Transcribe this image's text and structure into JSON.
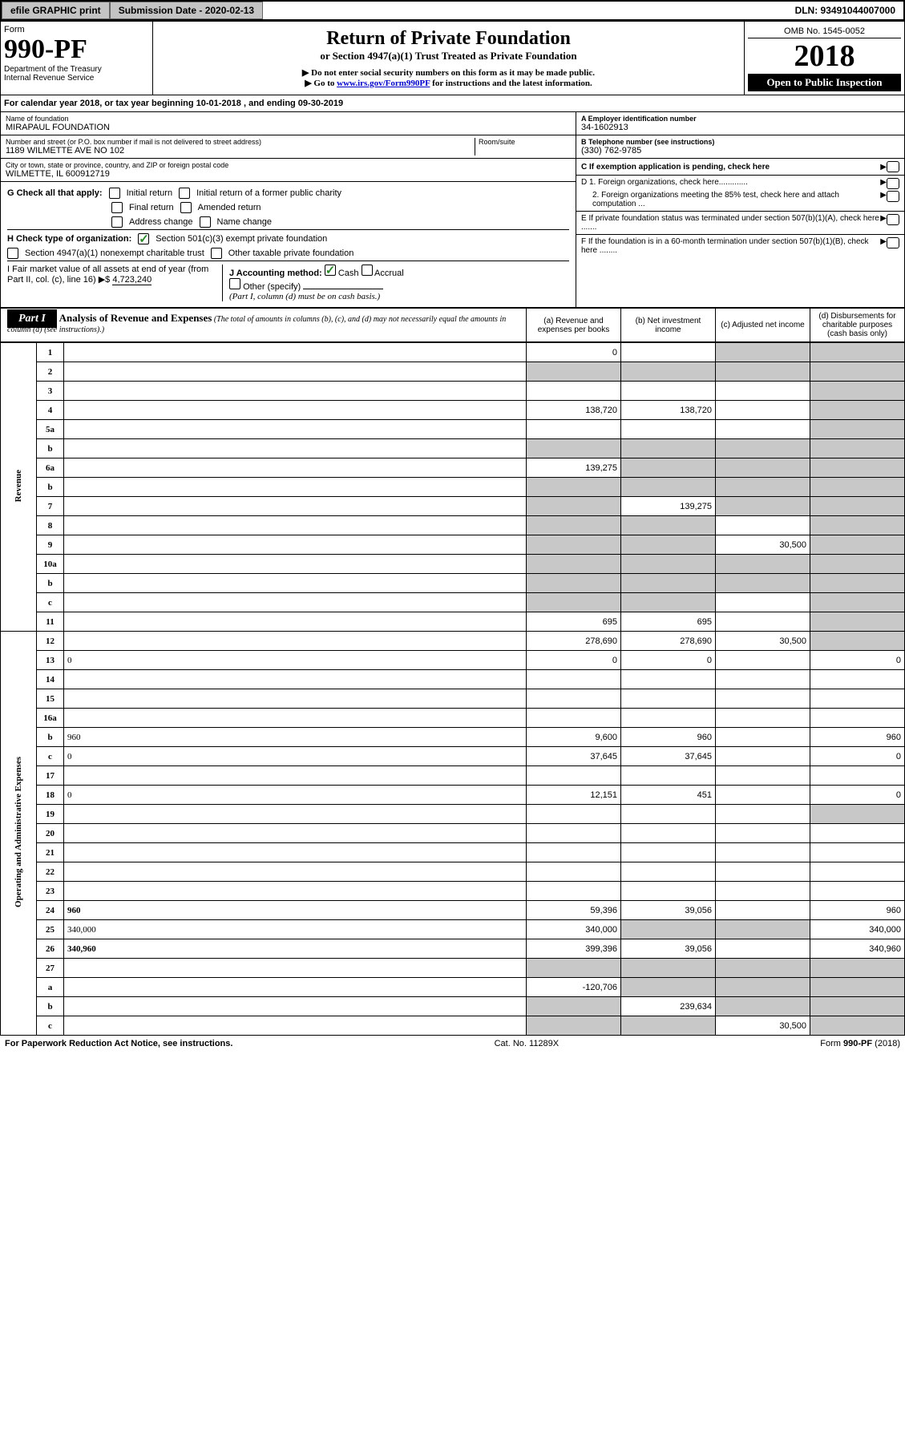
{
  "topbar": {
    "efile": "efile GRAPHIC print",
    "submission": "Submission Date - 2020-02-13",
    "dln": "DLN: 93491044007000"
  },
  "header": {
    "form_word": "Form",
    "form_no": "990-PF",
    "dept": "Department of the Treasury",
    "irs": "Internal Revenue Service",
    "title": "Return of Private Foundation",
    "subtitle": "or Section 4947(a)(1) Trust Treated as Private Foundation",
    "instr1": "▶ Do not enter social security numbers on this form as it may be made public.",
    "instr2_pre": "▶ Go to ",
    "instr2_link": "www.irs.gov/Form990PF",
    "instr2_post": " for instructions and the latest information.",
    "omb": "OMB No. 1545-0052",
    "year": "2018",
    "open": "Open to Public Inspection"
  },
  "calyear": "For calendar year 2018, or tax year beginning 10-01-2018               , and ending 09-30-2019",
  "entity": {
    "name_lbl": "Name of foundation",
    "name": "MIRAPAUL FOUNDATION",
    "addr_lbl": "Number and street (or P.O. box number if mail is not delivered to street address)",
    "addr": "1189 WILMETTE AVE NO 102",
    "room_lbl": "Room/suite",
    "city_lbl": "City or town, state or province, country, and ZIP or foreign postal code",
    "city": "WILMETTE, IL  600912719",
    "ein_lbl": "A Employer identification number",
    "ein": "34-1602913",
    "tel_lbl": "B Telephone number (see instructions)",
    "tel": "(330) 762-9785",
    "c_lbl": "C If exemption application is pending, check here",
    "d1": "D 1. Foreign organizations, check here.............",
    "d2": "2. Foreign organizations meeting the 85% test, check here and attach computation ...",
    "e_lbl": "E  If private foundation status was terminated under section 507(b)(1)(A), check here .......",
    "f_lbl": "F  If the foundation is in a 60-month termination under section 507(b)(1)(B), check here ........"
  },
  "checks": {
    "g_lbl": "G Check all that apply:",
    "g_items": [
      "Initial return",
      "Initial return of a former public charity",
      "Final return",
      "Amended return",
      "Address change",
      "Name change"
    ],
    "h_lbl": "H Check type of organization:",
    "h1": "Section 501(c)(3) exempt private foundation",
    "h2": "Section 4947(a)(1) nonexempt charitable trust",
    "h3": "Other taxable private foundation",
    "i_lbl": "I Fair market value of all assets at end of year (from Part II, col. (c), line 16) ▶$",
    "i_val": "4,723,240",
    "j_lbl": "J Accounting method:",
    "j_cash": "Cash",
    "j_accrual": "Accrual",
    "j_other": "Other (specify)",
    "j_note": "(Part I, column (d) must be on cash basis.)"
  },
  "part1": {
    "tab": "Part I",
    "title": "Analysis of Revenue and Expenses",
    "note": " (The total of amounts in columns (b), (c), and (d) may not necessarily equal the amounts in column (a) (see instructions).)",
    "cols": {
      "a": "(a)   Revenue and expenses per books",
      "b": "(b)  Net investment income",
      "c": "(c)  Adjusted net income",
      "d": "(d)  Disbursements for charitable purposes (cash basis only)"
    }
  },
  "vlabels": {
    "rev": "Revenue",
    "exp": "Operating and Administrative Expenses"
  },
  "rows": [
    {
      "n": "1",
      "d": "",
      "a": "0",
      "b": "",
      "c": "",
      "sh": [
        "c",
        "d"
      ]
    },
    {
      "n": "2",
      "d": "",
      "a": "",
      "b": "",
      "c": "",
      "sh": [
        "a",
        "b",
        "c",
        "d"
      ],
      "bold_not": true
    },
    {
      "n": "3",
      "d": "",
      "a": "",
      "b": "",
      "c": "",
      "sh": [
        "d"
      ]
    },
    {
      "n": "4",
      "d": "",
      "a": "138,720",
      "b": "138,720",
      "c": "",
      "sh": [
        "d"
      ]
    },
    {
      "n": "5a",
      "d": "",
      "a": "",
      "b": "",
      "c": "",
      "sh": [
        "d"
      ]
    },
    {
      "n": "b",
      "d": "",
      "a": "",
      "b": "",
      "c": "",
      "sh": [
        "a",
        "b",
        "c",
        "d"
      ]
    },
    {
      "n": "6a",
      "d": "",
      "a": "139,275",
      "b": "",
      "c": "",
      "sh": [
        "b",
        "c",
        "d"
      ]
    },
    {
      "n": "b",
      "d": "",
      "a": "",
      "b": "",
      "c": "",
      "sh": [
        "a",
        "b",
        "c",
        "d"
      ]
    },
    {
      "n": "7",
      "d": "",
      "a": "",
      "b": "139,275",
      "c": "",
      "sh": [
        "a",
        "c",
        "d"
      ]
    },
    {
      "n": "8",
      "d": "",
      "a": "",
      "b": "",
      "c": "",
      "sh": [
        "a",
        "b",
        "d"
      ]
    },
    {
      "n": "9",
      "d": "",
      "a": "",
      "b": "",
      "c": "30,500",
      "sh": [
        "a",
        "b",
        "d"
      ]
    },
    {
      "n": "10a",
      "d": "",
      "a": "",
      "b": "",
      "c": "",
      "sh": [
        "a",
        "b",
        "c",
        "d"
      ]
    },
    {
      "n": "b",
      "d": "",
      "a": "",
      "b": "",
      "c": "",
      "sh": [
        "a",
        "b",
        "c",
        "d"
      ]
    },
    {
      "n": "c",
      "d": "",
      "a": "",
      "b": "",
      "c": "",
      "sh": [
        "a",
        "b",
        "d"
      ]
    },
    {
      "n": "11",
      "d": "",
      "a": "695",
      "b": "695",
      "c": "",
      "sh": [
        "d"
      ]
    },
    {
      "n": "12",
      "d": "",
      "a": "278,690",
      "b": "278,690",
      "c": "30,500",
      "sh": [
        "d"
      ],
      "bold": true
    },
    {
      "n": "13",
      "d": "0",
      "a": "0",
      "b": "0",
      "c": ""
    },
    {
      "n": "14",
      "d": "",
      "a": "",
      "b": "",
      "c": ""
    },
    {
      "n": "15",
      "d": "",
      "a": "",
      "b": "",
      "c": ""
    },
    {
      "n": "16a",
      "d": "",
      "a": "",
      "b": "",
      "c": ""
    },
    {
      "n": "b",
      "d": "960",
      "a": "9,600",
      "b": "960",
      "c": ""
    },
    {
      "n": "c",
      "d": "0",
      "a": "37,645",
      "b": "37,645",
      "c": ""
    },
    {
      "n": "17",
      "d": "",
      "a": "",
      "b": "",
      "c": ""
    },
    {
      "n": "18",
      "d": "0",
      "a": "12,151",
      "b": "451",
      "c": ""
    },
    {
      "n": "19",
      "d": "",
      "a": "",
      "b": "",
      "c": "",
      "sh": [
        "d"
      ]
    },
    {
      "n": "20",
      "d": "",
      "a": "",
      "b": "",
      "c": ""
    },
    {
      "n": "21",
      "d": "",
      "a": "",
      "b": "",
      "c": ""
    },
    {
      "n": "22",
      "d": "",
      "a": "",
      "b": "",
      "c": ""
    },
    {
      "n": "23",
      "d": "",
      "a": "",
      "b": "",
      "c": ""
    },
    {
      "n": "24",
      "d": "960",
      "a": "59,396",
      "b": "39,056",
      "c": "",
      "bold": true
    },
    {
      "n": "25",
      "d": "340,000",
      "a": "340,000",
      "b": "",
      "c": "",
      "sh": [
        "b",
        "c"
      ]
    },
    {
      "n": "26",
      "d": "340,960",
      "a": "399,396",
      "b": "39,056",
      "c": "",
      "bold": true
    },
    {
      "n": "27",
      "d": "",
      "a": "",
      "b": "",
      "c": "",
      "sh": [
        "a",
        "b",
        "c",
        "d"
      ]
    },
    {
      "n": "a",
      "d": "",
      "a": "-120,706",
      "b": "",
      "c": "",
      "sh": [
        "b",
        "c",
        "d"
      ],
      "bold": true
    },
    {
      "n": "b",
      "d": "",
      "a": "",
      "b": "239,634",
      "c": "",
      "sh": [
        "a",
        "c",
        "d"
      ],
      "bold": true
    },
    {
      "n": "c",
      "d": "",
      "a": "",
      "b": "",
      "c": "30,500",
      "sh": [
        "a",
        "b",
        "d"
      ],
      "bold": true
    }
  ],
  "footer": {
    "left": "For Paperwork Reduction Act Notice, see instructions.",
    "mid": "Cat. No. 11289X",
    "right": "Form 990-PF (2018)"
  },
  "colors": {
    "shade": "#c8c8c8",
    "link": "#0000cc",
    "check": "#2a8a2a"
  }
}
